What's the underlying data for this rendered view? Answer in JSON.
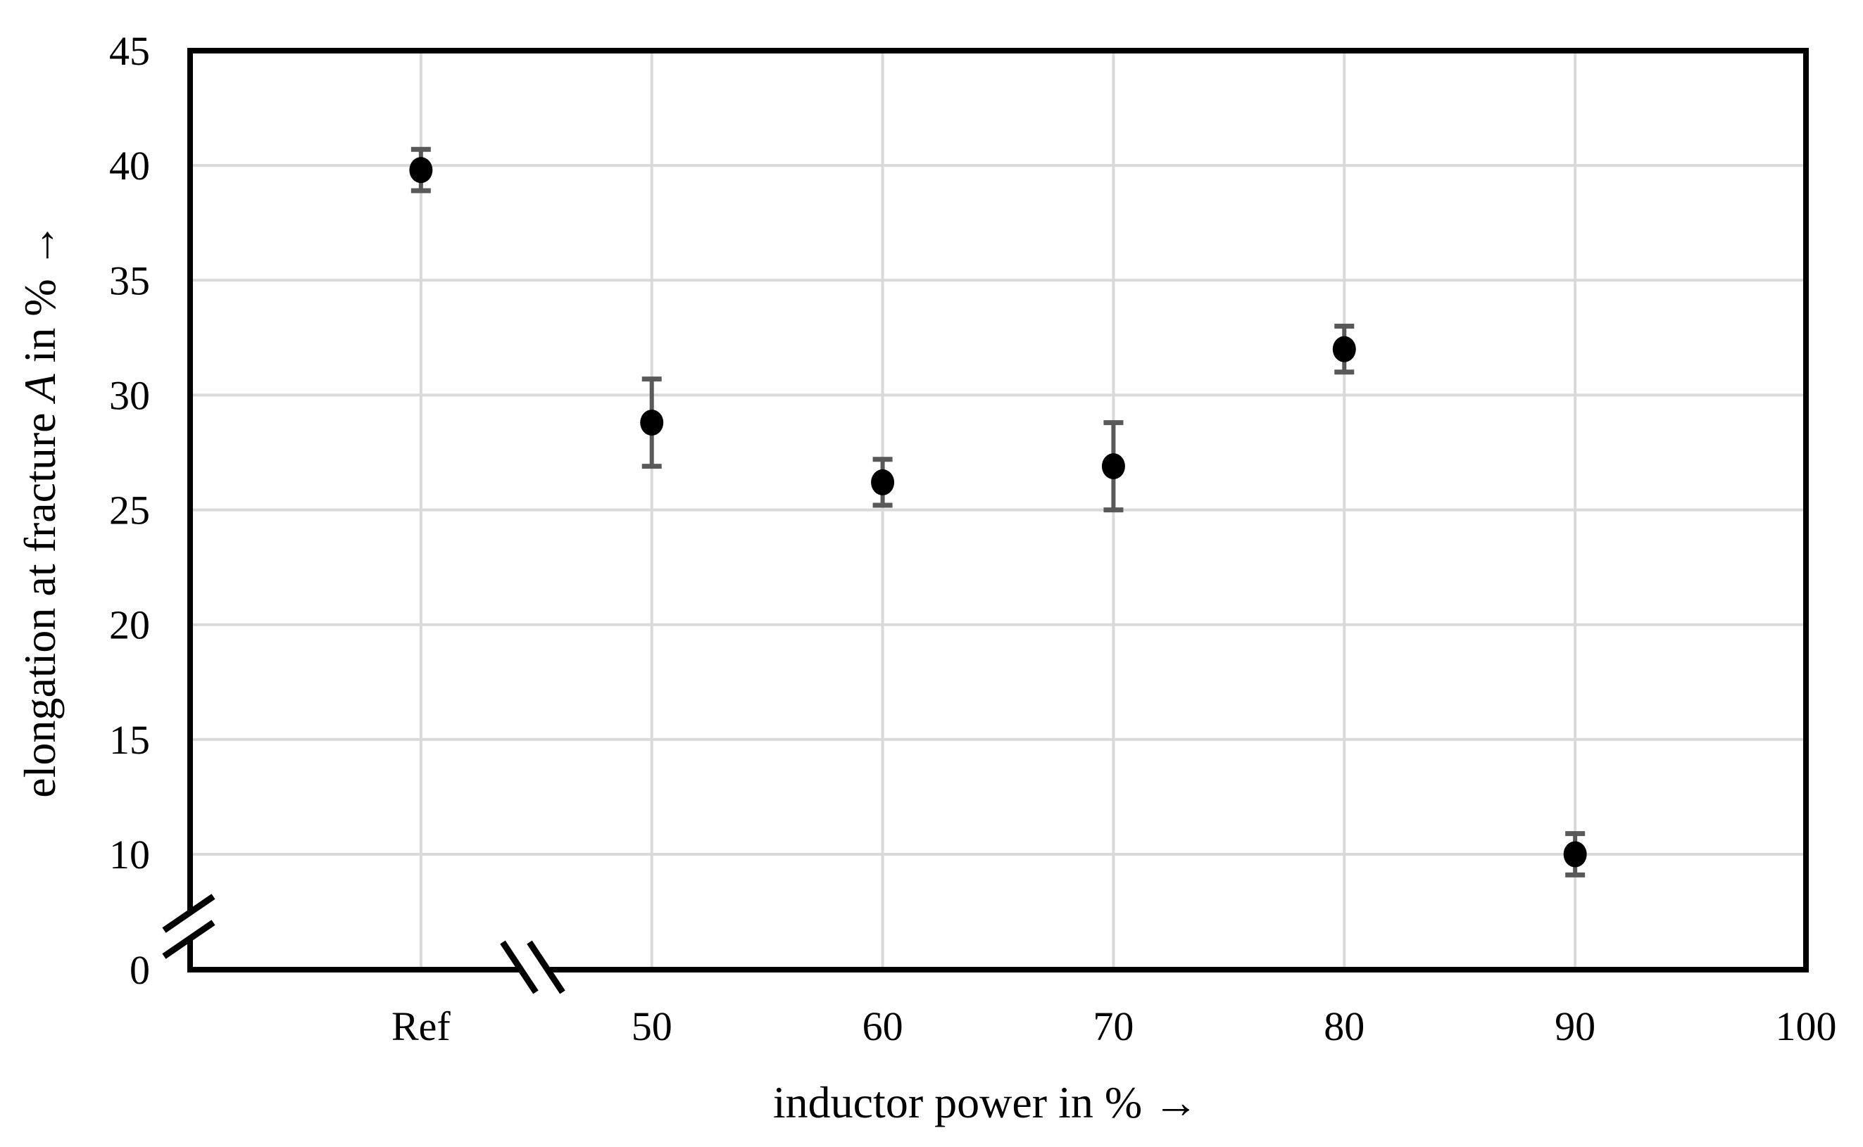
{
  "chart_data": {
    "type": "scatter",
    "title": "",
    "xlabel": "inductor power in % →",
    "ylabel": "elongation at fracture A in % →",
    "ylabel_parts": {
      "pre": "elongation at fracture ",
      "var": "A",
      "post": " in % →"
    },
    "categories": [
      "Ref",
      "50",
      "60",
      "70",
      "80",
      "90"
    ],
    "values": [
      39.8,
      28.8,
      26.2,
      26.9,
      32.0,
      10.0
    ],
    "errors": [
      0.9,
      1.9,
      1.0,
      1.9,
      1.0,
      0.9
    ],
    "x_ticks": [
      "Ref",
      "50",
      "60",
      "70",
      "80",
      "90",
      "100"
    ],
    "y_ticks": [
      0,
      10,
      15,
      20,
      25,
      30,
      35,
      40,
      45
    ],
    "ylim": [
      0,
      45
    ],
    "grid": true,
    "legend": "none",
    "axis_breaks": {
      "y_axis_break_between": [
        0,
        10
      ],
      "x_axis_break_between": [
        "Ref",
        "50"
      ]
    },
    "colors": {
      "marker": "#000000",
      "error_bar": "#595959",
      "gridline": "#d9d9d9",
      "axis": "#000000",
      "background": "#ffffff"
    }
  }
}
